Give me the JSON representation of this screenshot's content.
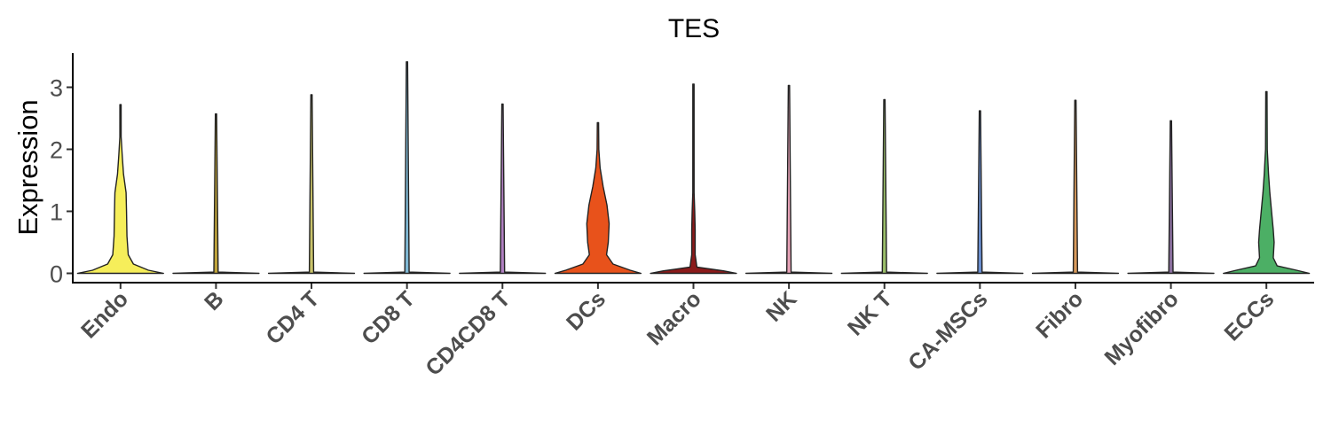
{
  "chart_data": {
    "type": "violin",
    "title": "TES",
    "xlabel": "",
    "ylabel": "Expression",
    "ylim": [
      -0.15,
      3.55
    ],
    "yticks": [
      0,
      1,
      2,
      3
    ],
    "grid": false,
    "legend": "none",
    "categories": [
      "Endo",
      "B",
      "CD4 T",
      "CD8 T",
      "CD4CD8 T",
      "DCs",
      "Macro",
      "NK",
      "NK T",
      "CA-MSCs",
      "Fibro",
      "Myofibro",
      "ECCs"
    ],
    "colors": [
      "#F6EE5A",
      "#BFA33A",
      "#C9C36A",
      "#7FB8D4",
      "#B07FC1",
      "#E8521B",
      "#8B1A1A",
      "#E8A3B8",
      "#9BBF6A",
      "#6A8ECF",
      "#D99A5B",
      "#8A6F9E",
      "#4CAF65"
    ],
    "max_values": [
      2.72,
      2.57,
      2.88,
      3.41,
      2.73,
      2.43,
      3.05,
      3.03,
      2.8,
      2.62,
      2.79,
      2.46,
      2.93
    ],
    "densities": [
      [
        [
          0,
          1.0
        ],
        [
          0.05,
          0.65
        ],
        [
          0.15,
          0.3
        ],
        [
          0.3,
          0.18
        ],
        [
          0.6,
          0.15
        ],
        [
          1.0,
          0.14
        ],
        [
          1.3,
          0.13
        ],
        [
          1.6,
          0.07
        ],
        [
          1.9,
          0.04
        ],
        [
          2.2,
          0.015
        ],
        [
          2.72,
          0.0
        ]
      ],
      [
        [
          0,
          1.0
        ],
        [
          0.02,
          0.05
        ],
        [
          2.57,
          0.0
        ]
      ],
      [
        [
          0,
          1.0
        ],
        [
          0.02,
          0.05
        ],
        [
          2.88,
          0.0
        ]
      ],
      [
        [
          0,
          1.0
        ],
        [
          0.02,
          0.05
        ],
        [
          3.41,
          0.0
        ]
      ],
      [
        [
          0,
          1.0
        ],
        [
          0.02,
          0.05
        ],
        [
          2.73,
          0.0
        ]
      ],
      [
        [
          0,
          1.0
        ],
        [
          0.05,
          0.75
        ],
        [
          0.15,
          0.35
        ],
        [
          0.3,
          0.2
        ],
        [
          0.5,
          0.24
        ],
        [
          0.8,
          0.26
        ],
        [
          1.1,
          0.21
        ],
        [
          1.4,
          0.12
        ],
        [
          1.7,
          0.05
        ],
        [
          2.0,
          0.02
        ],
        [
          2.43,
          0.0
        ]
      ],
      [
        [
          0,
          1.0
        ],
        [
          0.04,
          0.7
        ],
        [
          0.1,
          0.08
        ],
        [
          0.3,
          0.04
        ],
        [
          0.7,
          0.04
        ],
        [
          1.0,
          0.03
        ],
        [
          1.3,
          0.015
        ],
        [
          3.05,
          0.0
        ]
      ],
      [
        [
          0,
          1.0
        ],
        [
          0.02,
          0.05
        ],
        [
          3.03,
          0.0
        ]
      ],
      [
        [
          0,
          1.0
        ],
        [
          0.02,
          0.05
        ],
        [
          2.8,
          0.0
        ]
      ],
      [
        [
          0,
          1.0
        ],
        [
          0.02,
          0.05
        ],
        [
          2.62,
          0.0
        ]
      ],
      [
        [
          0,
          1.0
        ],
        [
          0.02,
          0.05
        ],
        [
          2.79,
          0.0
        ]
      ],
      [
        [
          0,
          1.0
        ],
        [
          0.02,
          0.05
        ],
        [
          2.46,
          0.0
        ]
      ],
      [
        [
          0,
          1.0
        ],
        [
          0.05,
          0.7
        ],
        [
          0.12,
          0.25
        ],
        [
          0.25,
          0.16
        ],
        [
          0.5,
          0.18
        ],
        [
          0.7,
          0.16
        ],
        [
          1.0,
          0.12
        ],
        [
          1.3,
          0.08
        ],
        [
          1.6,
          0.05
        ],
        [
          2.0,
          0.02
        ],
        [
          2.93,
          0.0
        ]
      ]
    ]
  }
}
